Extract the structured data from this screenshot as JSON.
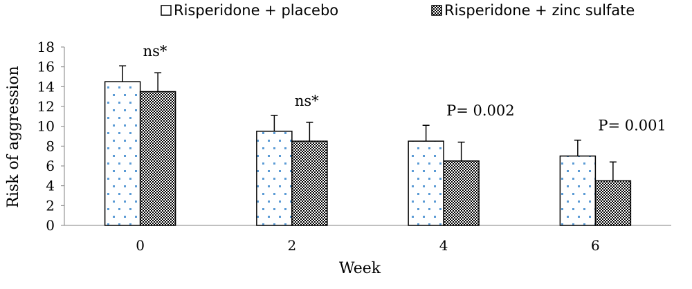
{
  "chart_data": {
    "type": "bar",
    "xlabel": "Week",
    "ylabel": "Risk of aggression",
    "ylim": [
      0,
      18
    ],
    "yticks": [
      "0",
      "2",
      "4",
      "6",
      "8",
      "10",
      "12",
      "14",
      "16",
      "18"
    ],
    "categories": [
      "0",
      "2",
      "4",
      "6"
    ],
    "grid": false,
    "legend_position": "top",
    "series": [
      {
        "name": "Risperidone + placebo",
        "pattern": "dots",
        "dot_color": "#5b9bd5",
        "values": [
          14.5,
          9.5,
          8.5,
          7.0
        ],
        "error_upper": [
          16.1,
          11.1,
          10.1,
          8.6
        ]
      },
      {
        "name": "Risperidone + zinc sulfate",
        "pattern": "checker",
        "values": [
          13.5,
          8.5,
          6.5,
          4.5
        ],
        "error_upper": [
          15.4,
          10.4,
          8.4,
          6.4
        ]
      }
    ],
    "annotations": [
      "ns*",
      "ns*",
      "P= 0.002",
      "P= 0.001"
    ]
  }
}
